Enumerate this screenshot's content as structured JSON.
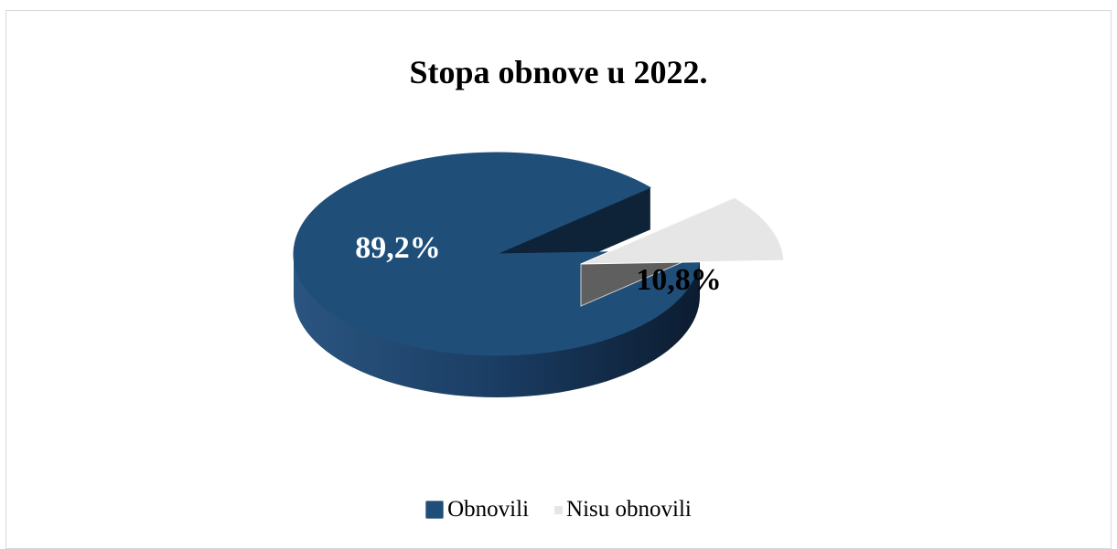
{
  "chart_data": {
    "type": "pie",
    "title": "Stopa obnove u 2022.",
    "categories": [
      "Obnovili",
      "Nisu obnovili"
    ],
    "values": [
      89.2,
      10.8
    ],
    "data_labels": [
      "89,2%",
      "10,8%"
    ],
    "colors": [
      "#1f4e79",
      "#e6e6e6"
    ],
    "exploded": [
      false,
      true
    ],
    "legend_position": "bottom",
    "style": "3d"
  }
}
